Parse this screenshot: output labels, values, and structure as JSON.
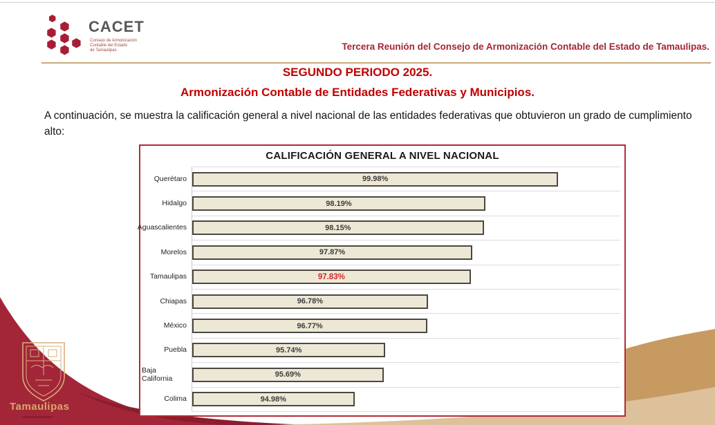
{
  "header": {
    "logo": {
      "acronym": "CACET",
      "subtitle_lines": [
        "Consejo de Armonización",
        "Contable del Estado",
        "de Tamaulipas"
      ]
    },
    "meeting_title": "Tercera Reunión del Consejo de Armonización Contable del Estado de Tamaulipas."
  },
  "titles": {
    "line1": "SEGUNDO PERIODO 2025.",
    "line2": "Armonización Contable de Entidades Federativas y Municipios."
  },
  "intro_text": "A continuación, se muestra la calificación general a nivel nacional de las entidades federativas que obtuvieron un grado de cumplimiento alto:",
  "footer": {
    "state_wordmark": "Tamaulipas"
  },
  "colors": {
    "accent_maroon": "#a32638",
    "title_red": "#c00000",
    "header_rule_tan": "#c9a87a",
    "tan_dark": "#c79a62",
    "tan_light": "#dcc19b",
    "chart_border_red": "#b12a33",
    "bar_fill": "#ede8d6",
    "bar_border": "#4a473f",
    "highlight_red": "#d22b2b",
    "logo_crimson": "#a81d35",
    "logo_text_gray": "#58585a",
    "wordmark_tan": "#d8a86c"
  },
  "chart_data": {
    "type": "bar",
    "orientation": "horizontal",
    "title": "CALIFICACIÓN GENERAL A NIVEL NACIONAL",
    "categories": [
      "Querétaro",
      "Hidalgo",
      "Aguascalientes",
      "Morelos",
      "Tamaulipas",
      "Chiapas",
      "México",
      "Puebla",
      "Baja California",
      "Colima"
    ],
    "values": [
      99.98,
      98.19,
      98.15,
      97.87,
      97.83,
      96.78,
      96.77,
      95.74,
      95.69,
      94.98
    ],
    "value_labels": [
      "99.98%",
      "98.19%",
      "98.15%",
      "97.87%",
      "97.83%",
      "96.78%",
      "96.77%",
      "95.74%",
      "95.69%",
      "94.98%"
    ],
    "highlight_category": "Tamaulipas",
    "highlight_index": 4,
    "xlim": [
      91,
      101.5
    ],
    "grid": true,
    "legend": false,
    "xlabel": "",
    "ylabel": ""
  }
}
